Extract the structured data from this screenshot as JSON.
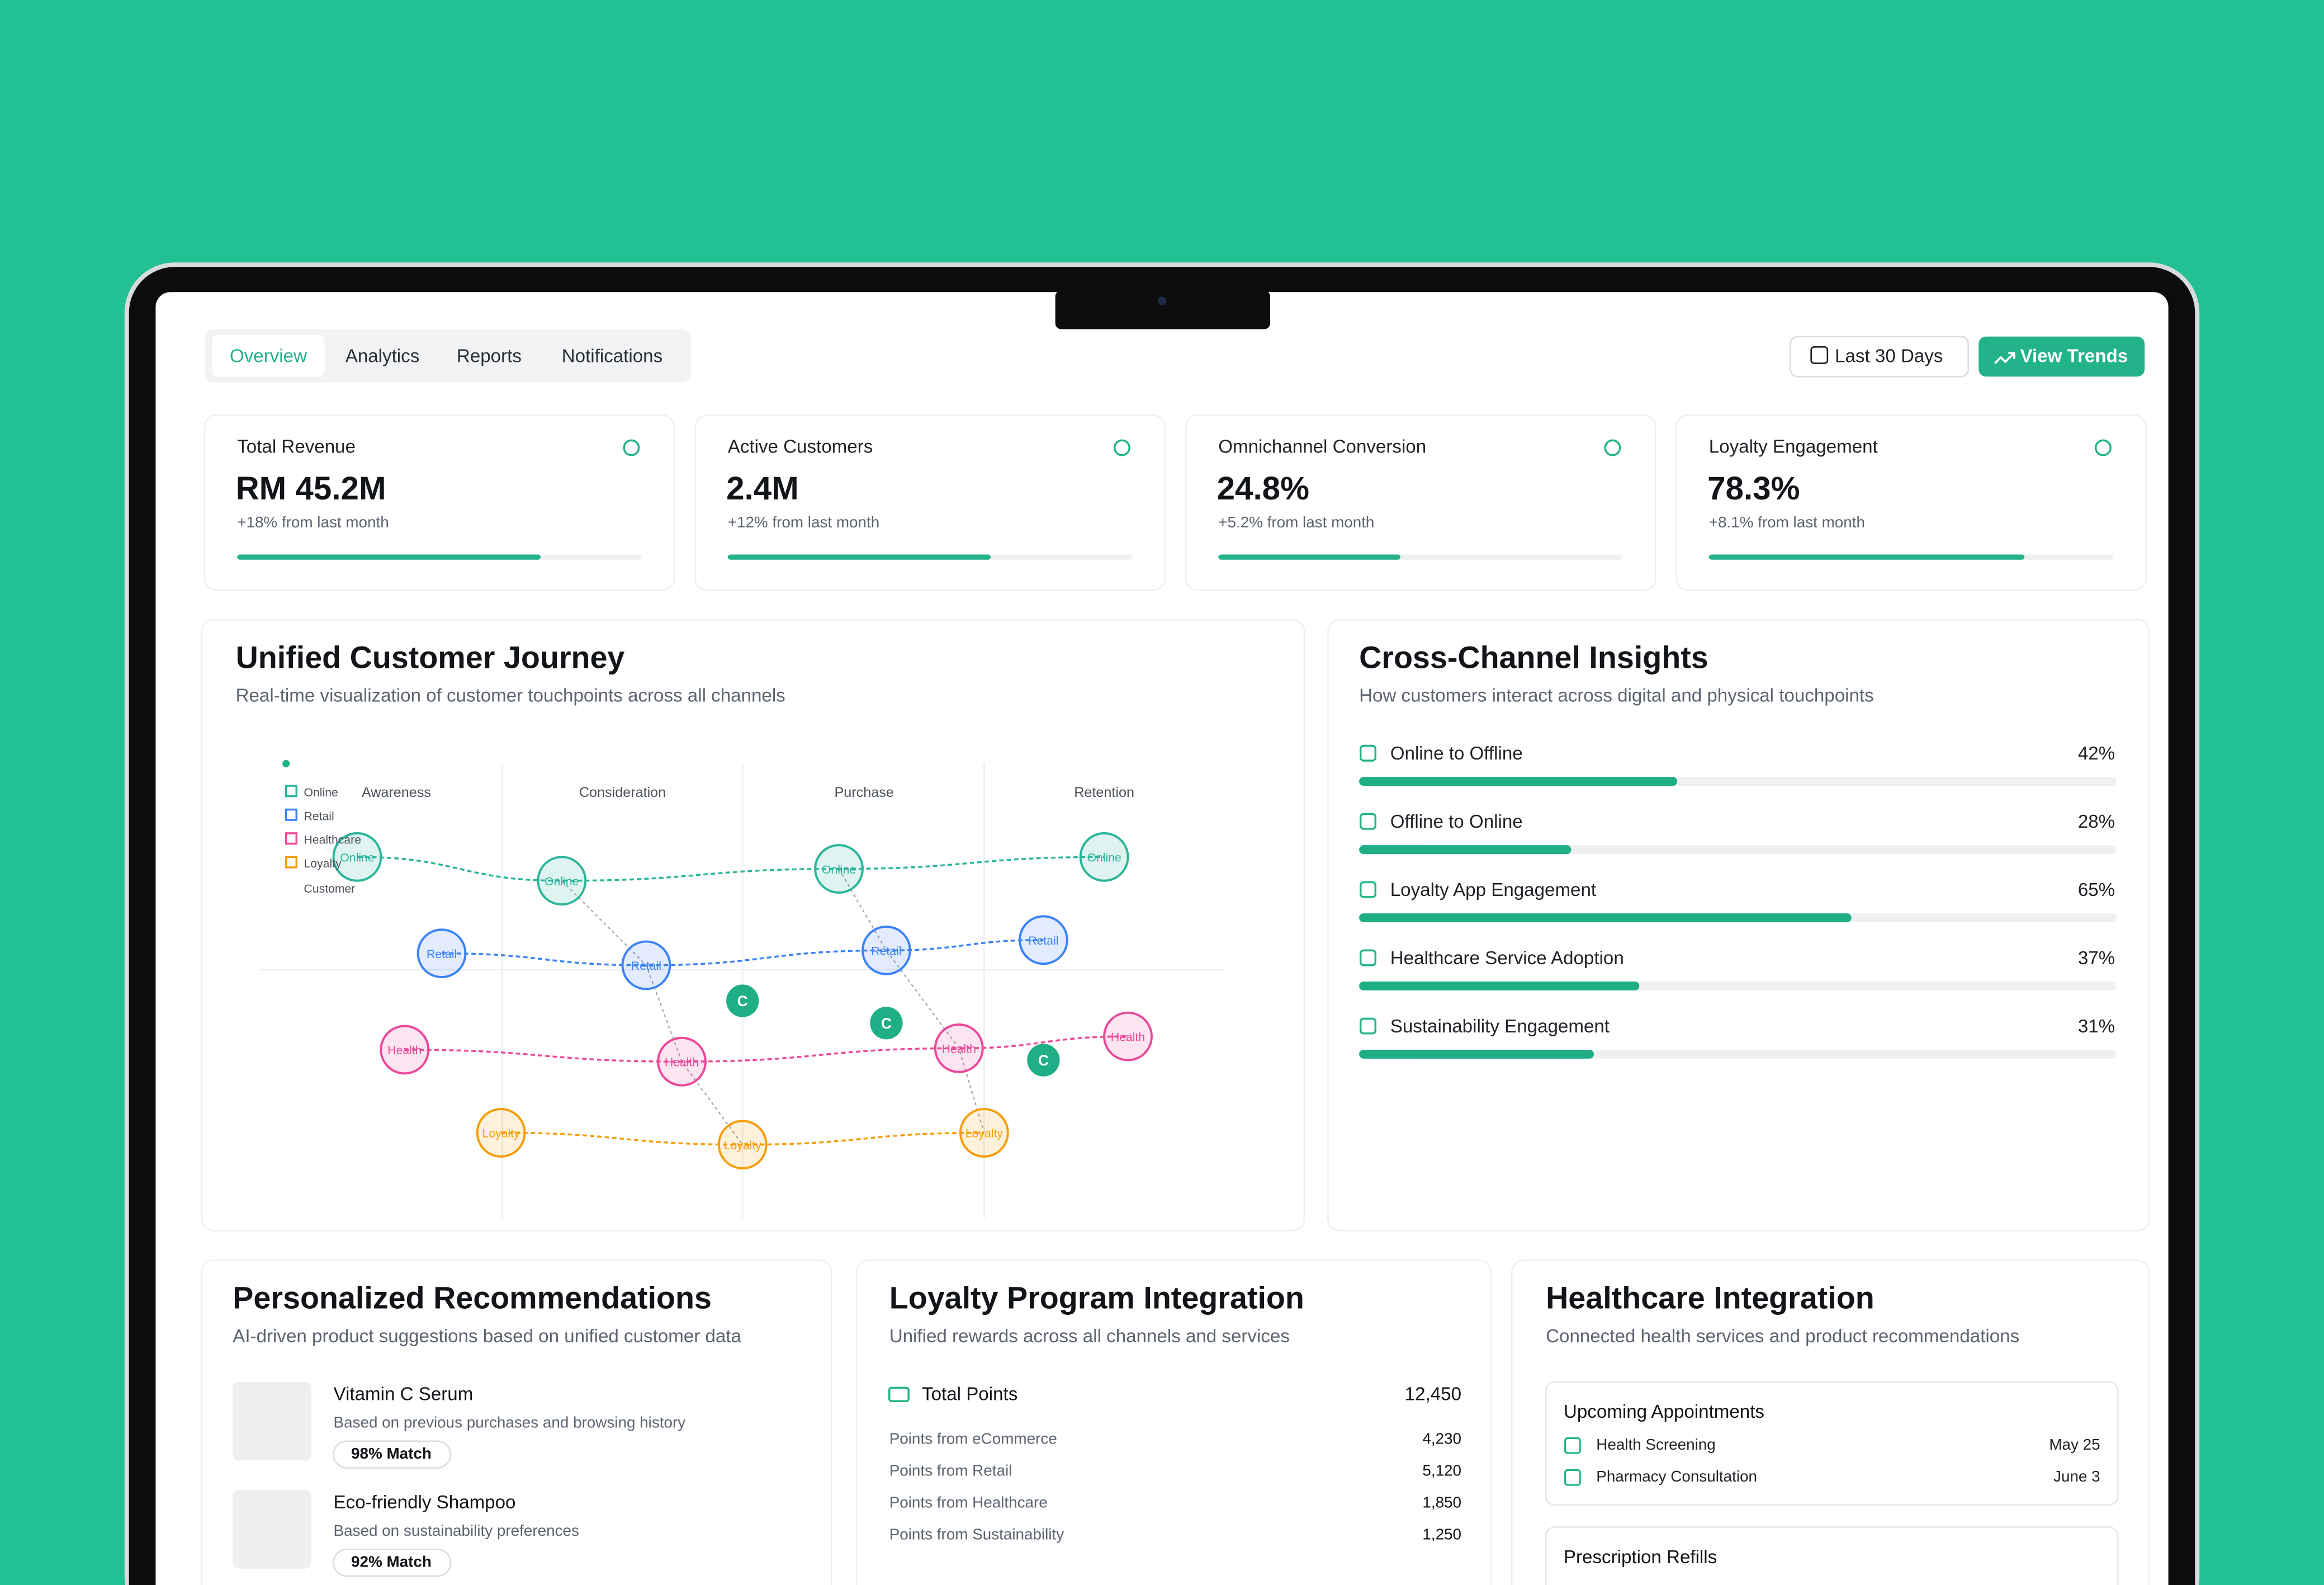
{
  "tabs": [
    "Overview",
    "Analytics",
    "Reports",
    "Notifications"
  ],
  "actions": {
    "date_range": "Last 30 Days",
    "trends": "View Trends"
  },
  "kpis": [
    {
      "label": "Total Revenue",
      "value": "RM 45.2M",
      "change": "+18% from last month",
      "progress": 75
    },
    {
      "label": "Active Customers",
      "value": "2.4M",
      "change": "+12% from last month",
      "progress": 65
    },
    {
      "label": "Omnichannel Conversion",
      "value": "24.8%",
      "change": "+5.2% from last month",
      "progress": 45
    },
    {
      "label": "Loyalty Engagement",
      "value": "78.3%",
      "change": "+8.1% from last month",
      "progress": 78
    }
  ],
  "journey": {
    "title": "Unified Customer Journey",
    "subtitle": "Real-time visualization of customer touchpoints across all channels",
    "stages": [
      "Awareness",
      "Consideration",
      "Purchase",
      "Retention"
    ],
    "legend_note": "Customer",
    "channels": [
      {
        "legend": "Online",
        "node_label": "Online",
        "color": "#2bb59a",
        "nodes": 4
      },
      {
        "legend": "Retail",
        "node_label": "Retail",
        "color": "#3b82f6",
        "nodes": 4
      },
      {
        "legend": "Healthcare",
        "node_label": "Health",
        "color": "#ec4899",
        "nodes": 4
      },
      {
        "legend": "Loyalty",
        "node_label": "Loyalty",
        "color": "#f59e0b",
        "nodes": 3
      }
    ],
    "markers": [
      "C",
      "C",
      "C"
    ]
  },
  "insights": {
    "title": "Cross-Channel Insights",
    "subtitle": "How customers interact across digital and physical touchpoints",
    "items": [
      {
        "label": "Online to Offline",
        "value": 42,
        "value_label": "42%"
      },
      {
        "label": "Offline to Online",
        "value": 28,
        "value_label": "28%"
      },
      {
        "label": "Loyalty App Engagement",
        "value": 65,
        "value_label": "65%"
      },
      {
        "label": "Healthcare Service Adoption",
        "value": 37,
        "value_label": "37%"
      },
      {
        "label": "Sustainability Engagement",
        "value": 31,
        "value_label": "31%"
      }
    ]
  },
  "recommendations": {
    "title": "Personalized Recommendations",
    "subtitle": "AI-driven product suggestions based on unified customer data",
    "items": [
      {
        "name": "Vitamin C Serum",
        "reason": "Based on previous purchases and browsing history",
        "match": "98% Match"
      },
      {
        "name": "Eco-friendly Shampoo",
        "reason": "Based on sustainability preferences",
        "match": "92% Match"
      }
    ]
  },
  "loyalty": {
    "title": "Loyalty Program Integration",
    "subtitle": "Unified rewards across all channels and services",
    "total_label": "Total Points",
    "total": "12,450",
    "rows": [
      [
        "Points from eCommerce",
        "4,230"
      ],
      [
        "Points from Retail",
        "5,120"
      ],
      [
        "Points from Healthcare",
        "1,850"
      ],
      [
        "Points from Sustainability",
        "1,250"
      ]
    ]
  },
  "healthcare": {
    "title": "Healthcare Integration",
    "subtitle": "Connected health services and product recommendations",
    "appointments_title": "Upcoming Appointments",
    "appointments": [
      [
        "Health Screening",
        "May 25"
      ],
      [
        "Pharmacy Consultation",
        "June 3"
      ]
    ],
    "refills_title": "Prescription Refills"
  }
}
